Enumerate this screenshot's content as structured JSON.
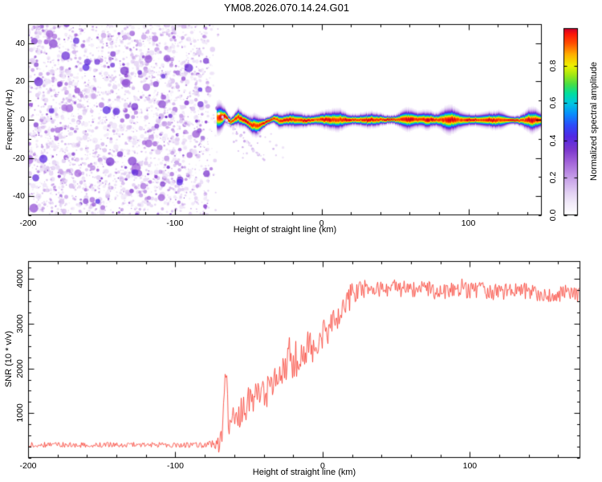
{
  "page": {
    "title": "YM08.2026.070.14.24.G01",
    "background": "#ffffff"
  },
  "chart_data": [
    {
      "type": "heatmap",
      "panel": "spectrogram",
      "xlabel": "Height of straight line (km)",
      "ylabel": "Frequency (Hz)",
      "xlim": [
        -200,
        150
      ],
      "ylim": [
        -50,
        50
      ],
      "xticks": [
        -200,
        -100,
        0,
        100
      ],
      "yticks": [
        -40,
        -20,
        0,
        20,
        40
      ],
      "grid": false,
      "colorbar": {
        "label": "Normalized spectral amplitude",
        "tick_labels": [
          "0.0",
          "0.2",
          "0.4",
          "0.6",
          "0.8"
        ],
        "tick_values": [
          0,
          0.2,
          0.4,
          0.6,
          0.8
        ],
        "range": [
          0,
          1
        ]
      },
      "colormap_stops": [
        [
          0.0,
          255,
          255,
          255
        ],
        [
          0.06,
          243,
          236,
          250
        ],
        [
          0.12,
          226,
          208,
          243
        ],
        [
          0.2,
          198,
          158,
          232
        ],
        [
          0.28,
          164,
          102,
          218
        ],
        [
          0.35,
          124,
          56,
          205
        ],
        [
          0.42,
          82,
          40,
          228
        ],
        [
          0.48,
          45,
          75,
          250
        ],
        [
          0.54,
          10,
          140,
          252
        ],
        [
          0.6,
          0,
          200,
          225
        ],
        [
          0.65,
          0,
          222,
          160
        ],
        [
          0.7,
          70,
          222,
          70
        ],
        [
          0.75,
          160,
          232,
          20
        ],
        [
          0.8,
          238,
          242,
          0
        ],
        [
          0.86,
          255,
          176,
          0
        ],
        [
          0.92,
          255,
          80,
          0
        ],
        [
          0.97,
          252,
          22,
          8
        ],
        [
          1.0,
          200,
          0,
          45
        ]
      ],
      "noise_region": {
        "x_start": -200,
        "x_end": -77,
        "value_range": [
          0.07,
          0.38
        ],
        "description": "dense random purple speckle (no atmospheric echo) filling full frequency range"
      },
      "signal": {
        "x_start": -71,
        "x_end": 150,
        "center_hz": 0,
        "peak_value": 1.0,
        "core_halfwidth_hz": 1.5,
        "halo_halfwidth_hz": 5,
        "wander_hz": [
          [
            -71,
            1
          ],
          [
            -66,
            2
          ],
          [
            -62,
            -1
          ],
          [
            -57,
            1.5
          ],
          [
            -52,
            -0.5
          ],
          [
            -48,
            -2.5
          ],
          [
            -43,
            -3
          ],
          [
            -38,
            -1
          ],
          [
            -33,
            1
          ],
          [
            -28,
            -0.5
          ],
          [
            -22,
            0.3
          ],
          [
            -15,
            -0.2
          ],
          [
            0,
            0.2
          ],
          [
            30,
            0
          ],
          [
            60,
            0.3
          ],
          [
            100,
            0
          ],
          [
            150,
            0
          ]
        ],
        "wide_spots": [
          [
            -70,
            2.5,
            1.8
          ],
          [
            -57,
            2,
            0.8
          ],
          [
            -45,
            2.5,
            0.9
          ],
          [
            -30,
            2,
            0.6
          ],
          [
            12,
            3,
            0.5
          ],
          [
            57,
            4,
            0.9
          ],
          [
            72,
            3,
            0.8
          ],
          [
            86,
            4,
            1.0
          ],
          [
            122,
            3,
            0.5
          ],
          [
            143,
            4,
            1.1
          ]
        ],
        "sidelobe_streak": {
          "from": [
            -71,
            4
          ],
          "to": [
            -36,
            -24
          ]
        }
      }
    },
    {
      "type": "line",
      "panel": "snr",
      "xlabel": "Height of straight line (km)",
      "ylabel": "SNR (10 * v/v)",
      "xlim": [
        -200,
        175
      ],
      "ylim": [
        0,
        4400
      ],
      "xticks": [
        -200,
        -100,
        0,
        100
      ],
      "yticks": [
        1000,
        2000,
        3000,
        4000
      ],
      "grid": false,
      "series": [
        {
          "name": "SNR",
          "color": "#f8362a",
          "envelope_points": [
            [
              -200,
              290
            ],
            [
              -120,
              290
            ],
            [
              -80,
              285
            ],
            [
              -73,
              330
            ],
            [
              -70,
              300
            ],
            [
              -68,
              700
            ],
            [
              -66,
              2100
            ],
            [
              -64,
              700
            ],
            [
              -60,
              850
            ],
            [
              -55,
              1050
            ],
            [
              -50,
              1250
            ],
            [
              -45,
              1450
            ],
            [
              -40,
              1400
            ],
            [
              -35,
              1650
            ],
            [
              -30,
              1850
            ],
            [
              -25,
              2050
            ],
            [
              -20,
              2150
            ],
            [
              -15,
              2350
            ],
            [
              -10,
              2450
            ],
            [
              -5,
              2550
            ],
            [
              0,
              2750
            ],
            [
              5,
              2950
            ],
            [
              10,
              3200
            ],
            [
              15,
              3450
            ],
            [
              20,
              3650
            ],
            [
              25,
              3750
            ],
            [
              40,
              3800
            ],
            [
              60,
              3780
            ],
            [
              80,
              3730
            ],
            [
              100,
              3760
            ],
            [
              120,
              3700
            ],
            [
              140,
              3740
            ],
            [
              155,
              3600
            ],
            [
              165,
              3700
            ],
            [
              175,
              3650
            ]
          ],
          "noise_amplitude": [
            [
              -200,
              60
            ],
            [
              -80,
              60
            ],
            [
              -72,
              150
            ],
            [
              -68,
              300
            ],
            [
              -60,
              330
            ],
            [
              -40,
              380
            ],
            [
              -20,
              420
            ],
            [
              0,
              360
            ],
            [
              10,
              320
            ],
            [
              20,
              280
            ],
            [
              40,
              210
            ],
            [
              175,
              170
            ]
          ]
        }
      ]
    }
  ]
}
